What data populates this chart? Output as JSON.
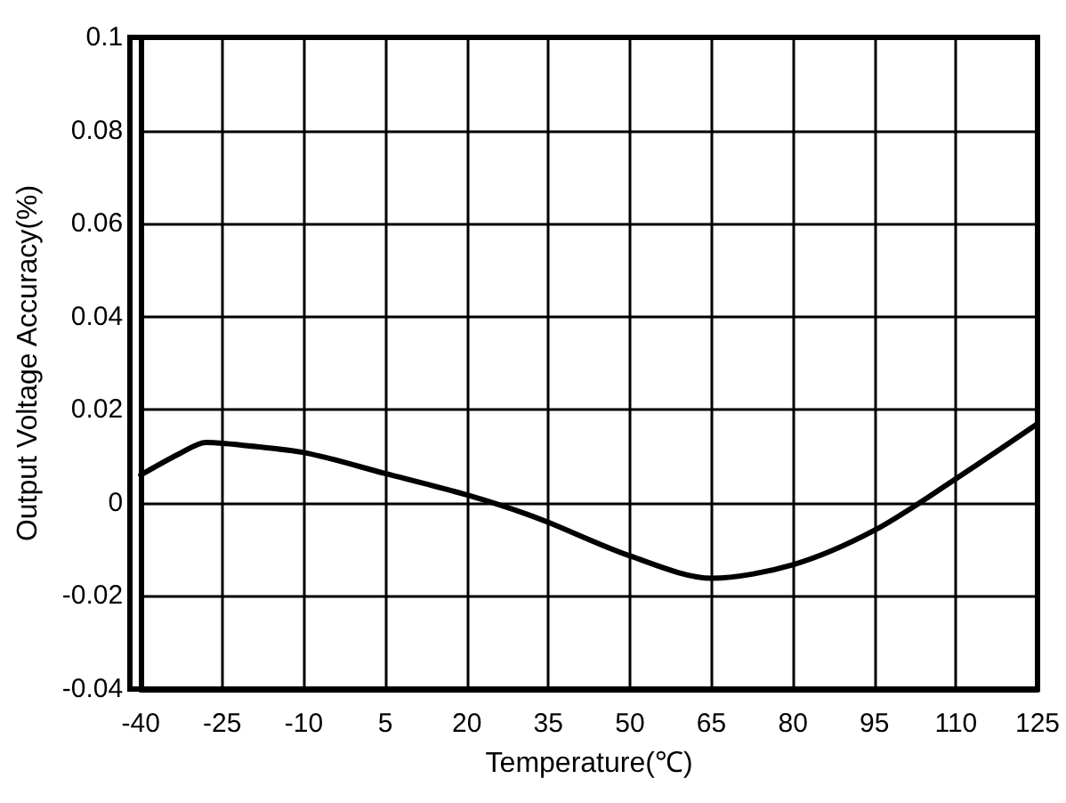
{
  "chart_data": {
    "type": "line",
    "xlabel": "Temperature(℃)",
    "ylabel": "Output Voltage Accuracy(%)",
    "series": [
      {
        "color": "#000000",
        "x": [
          -40,
          -33,
          -28,
          -25,
          -10,
          5,
          20,
          30,
          35,
          50,
          65,
          80,
          95,
          110,
          125
        ],
        "values": [
          0.006,
          0.0105,
          0.013,
          0.0128,
          0.0108,
          0.0063,
          0.0017,
          -0.002,
          -0.0042,
          -0.0114,
          -0.0162,
          -0.0133,
          -0.0059,
          0.0052,
          0.017
        ]
      }
    ],
    "xlim": [
      -40,
      125
    ],
    "xticks": [
      -40,
      -25,
      -10,
      5,
      20,
      35,
      50,
      65,
      80,
      95,
      110,
      125
    ],
    "ylim": [
      -0.04,
      0.1
    ],
    "yticks": [
      -0.04,
      -0.02,
      0,
      0.02,
      0.04,
      0.06,
      0.08,
      0.1
    ],
    "grid": true,
    "marker": "none",
    "line_style": "solid"
  }
}
